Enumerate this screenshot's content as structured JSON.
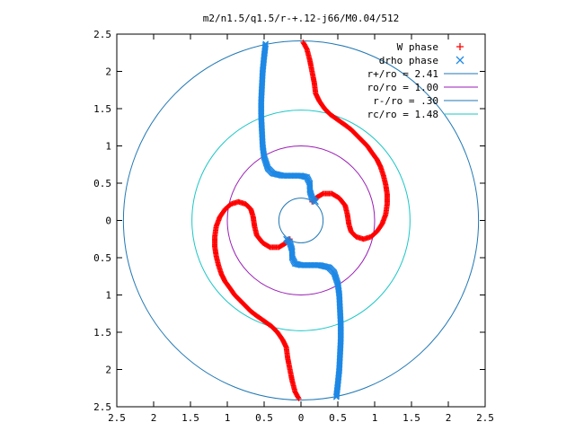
{
  "chart_data": {
    "type": "scatter",
    "title": "m2/n1.5/q1.5/r-+.12-j66/M0.04/512",
    "xlabel": "",
    "ylabel": "",
    "xlim": [
      -2.5,
      2.5
    ],
    "ylim": [
      -2.5,
      2.5
    ],
    "x_ticks": [
      "2.5",
      "2",
      "1.5",
      "1",
      "0.5",
      "0",
      "0.5",
      "1",
      "1.5",
      "2",
      "2.5"
    ],
    "y_ticks": [
      "2.5",
      "2",
      "1.5",
      "1",
      "0.5",
      "0",
      "0.5",
      "1",
      "1.5",
      "2",
      "2.5"
    ],
    "grid": false,
    "legend_position": "top-right",
    "circles": [
      {
        "name": "r+/ro = 2.41",
        "radius": 2.41,
        "color": "#1f77b4"
      },
      {
        "name": "ro/ro = 1.00",
        "radius": 1.0,
        "color": "#9a1bb5"
      },
      {
        "name": "r-/ro = .30",
        "radius": 0.3,
        "color": "#1f77b4"
      },
      {
        "name": "rc/ro = 1.48",
        "radius": 1.48,
        "color": "#1cc6c6"
      }
    ],
    "series": [
      {
        "name": "W phase",
        "marker": "+",
        "color": "#ff0000",
        "points": [
          [
            0.03,
            2.39
          ],
          [
            0.08,
            2.3
          ],
          [
            0.12,
            2.15
          ],
          [
            0.15,
            2.0
          ],
          [
            0.18,
            1.85
          ],
          [
            0.2,
            1.7
          ],
          [
            0.25,
            1.6
          ],
          [
            0.32,
            1.5
          ],
          [
            0.4,
            1.42
          ],
          [
            0.5,
            1.35
          ],
          [
            0.6,
            1.28
          ],
          [
            0.68,
            1.22
          ],
          [
            0.75,
            1.15
          ],
          [
            0.82,
            1.08
          ],
          [
            0.9,
            1.0
          ],
          [
            0.97,
            0.9
          ],
          [
            1.03,
            0.82
          ],
          [
            1.08,
            0.72
          ],
          [
            1.12,
            0.6
          ],
          [
            1.15,
            0.48
          ],
          [
            1.17,
            0.35
          ],
          [
            1.17,
            0.22
          ],
          [
            1.15,
            0.08
          ],
          [
            1.1,
            -0.05
          ],
          [
            1.03,
            -0.15
          ],
          [
            0.95,
            -0.22
          ],
          [
            0.85,
            -0.25
          ],
          [
            0.75,
            -0.22
          ],
          [
            0.68,
            -0.15
          ],
          [
            0.65,
            -0.05
          ],
          [
            0.63,
            0.08
          ],
          [
            0.6,
            0.2
          ],
          [
            0.52,
            0.3
          ],
          [
            0.42,
            0.36
          ],
          [
            0.3,
            0.36
          ],
          [
            0.2,
            0.3
          ],
          [
            0.15,
            0.25
          ],
          [
            -0.03,
            -2.39
          ],
          [
            -0.08,
            -2.3
          ],
          [
            -0.12,
            -2.15
          ],
          [
            -0.15,
            -2.0
          ],
          [
            -0.18,
            -1.85
          ],
          [
            -0.2,
            -1.7
          ],
          [
            -0.25,
            -1.6
          ],
          [
            -0.32,
            -1.5
          ],
          [
            -0.4,
            -1.42
          ],
          [
            -0.5,
            -1.35
          ],
          [
            -0.6,
            -1.28
          ],
          [
            -0.68,
            -1.22
          ],
          [
            -0.75,
            -1.15
          ],
          [
            -0.82,
            -1.08
          ],
          [
            -0.9,
            -1.0
          ],
          [
            -0.97,
            -0.9
          ],
          [
            -1.03,
            -0.82
          ],
          [
            -1.08,
            -0.72
          ],
          [
            -1.12,
            -0.6
          ],
          [
            -1.15,
            -0.48
          ],
          [
            -1.17,
            -0.35
          ],
          [
            -1.17,
            -0.22
          ],
          [
            -1.15,
            -0.08
          ],
          [
            -1.1,
            0.05
          ],
          [
            -1.03,
            0.15
          ],
          [
            -0.95,
            0.22
          ],
          [
            -0.85,
            0.25
          ],
          [
            -0.75,
            0.22
          ],
          [
            -0.68,
            0.15
          ],
          [
            -0.65,
            0.05
          ],
          [
            -0.63,
            -0.08
          ],
          [
            -0.6,
            -0.2
          ],
          [
            -0.52,
            -0.3
          ],
          [
            -0.42,
            -0.36
          ],
          [
            -0.3,
            -0.36
          ],
          [
            -0.2,
            -0.3
          ],
          [
            -0.15,
            -0.25
          ]
        ]
      },
      {
        "name": "drho phase",
        "marker": "x",
        "color": "#1e88e5",
        "points": [
          [
            -0.48,
            2.37
          ],
          [
            -0.5,
            2.2
          ],
          [
            -0.52,
            2.0
          ],
          [
            -0.53,
            1.8
          ],
          [
            -0.54,
            1.6
          ],
          [
            -0.54,
            1.4
          ],
          [
            -0.53,
            1.2
          ],
          [
            -0.52,
            1.0
          ],
          [
            -0.5,
            0.85
          ],
          [
            -0.45,
            0.7
          ],
          [
            -0.38,
            0.63
          ],
          [
            -0.25,
            0.6
          ],
          [
            -0.1,
            0.6
          ],
          [
            0.0,
            0.6
          ],
          [
            0.08,
            0.58
          ],
          [
            0.12,
            0.5
          ],
          [
            0.12,
            0.4
          ],
          [
            0.15,
            0.3
          ],
          [
            0.2,
            0.25
          ],
          [
            0.48,
            -2.37
          ],
          [
            0.5,
            -2.2
          ],
          [
            0.52,
            -2.0
          ],
          [
            0.53,
            -1.8
          ],
          [
            0.54,
            -1.6
          ],
          [
            0.54,
            -1.4
          ],
          [
            0.53,
            -1.2
          ],
          [
            0.52,
            -1.0
          ],
          [
            0.5,
            -0.85
          ],
          [
            0.45,
            -0.7
          ],
          [
            0.38,
            -0.63
          ],
          [
            0.25,
            -0.6
          ],
          [
            0.1,
            -0.6
          ],
          [
            0.0,
            -0.6
          ],
          [
            -0.08,
            -0.58
          ],
          [
            -0.12,
            -0.5
          ],
          [
            -0.12,
            -0.4
          ],
          [
            -0.15,
            -0.3
          ],
          [
            -0.2,
            -0.25
          ]
        ]
      }
    ]
  }
}
